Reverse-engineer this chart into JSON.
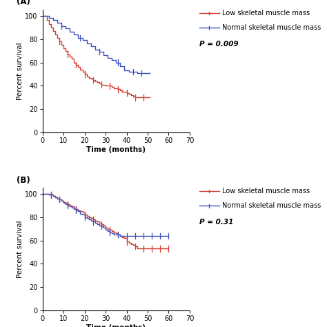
{
  "panel_A": {
    "label": "(A)",
    "p_value": "P = 0.009",
    "red": {
      "times": [
        0,
        2,
        3,
        4,
        5,
        6,
        7,
        8,
        9,
        10,
        11,
        12,
        13,
        14,
        15,
        16,
        17,
        18,
        19,
        20,
        21,
        22,
        23,
        24,
        25,
        26,
        27,
        28,
        29,
        30,
        31,
        32,
        33,
        34,
        35,
        36,
        37,
        38,
        39,
        40,
        41,
        42,
        43,
        44,
        45,
        46,
        47,
        48,
        49,
        50,
        51
      ],
      "surv": [
        100,
        96,
        93,
        90,
        87,
        84,
        81,
        78,
        75,
        72,
        70,
        67,
        65,
        63,
        60,
        58,
        56,
        54,
        52,
        50,
        48,
        47,
        46,
        45,
        44,
        43,
        42,
        41,
        41,
        40,
        40,
        40,
        39,
        38,
        38,
        37,
        36,
        35,
        35,
        34,
        33,
        32,
        31,
        30,
        30,
        30,
        30,
        30,
        30,
        30,
        30
      ],
      "censors": [
        8,
        12,
        16,
        20,
        24,
        28,
        32,
        36,
        40,
        44,
        48
      ]
    },
    "blue": {
      "times": [
        0,
        3,
        5,
        7,
        9,
        11,
        13,
        15,
        17,
        19,
        21,
        23,
        25,
        27,
        29,
        31,
        33,
        35,
        37,
        39,
        41,
        43,
        44,
        45,
        46,
        47,
        48,
        49,
        50,
        51
      ],
      "surv": [
        100,
        98,
        96,
        94,
        91,
        89,
        86,
        84,
        81,
        79,
        76,
        74,
        71,
        69,
        66,
        64,
        62,
        60,
        57,
        53,
        52,
        52,
        52,
        51,
        51,
        51,
        51,
        51,
        51,
        51
      ],
      "censors": [
        9,
        18,
        27,
        36,
        43,
        47
      ]
    },
    "xlim": [
      0,
      70
    ],
    "ylim": [
      0,
      105
    ],
    "xticks": [
      0,
      10,
      20,
      30,
      40,
      50,
      60,
      70
    ],
    "yticks": [
      0,
      20,
      40,
      60,
      80,
      100
    ]
  },
  "panel_B": {
    "label": "(B)",
    "p_value": "P = 0.31",
    "red": {
      "times": [
        0,
        1,
        3,
        5,
        6,
        7,
        8,
        9,
        10,
        11,
        12,
        13,
        14,
        15,
        16,
        17,
        18,
        19,
        20,
        21,
        22,
        23,
        24,
        25,
        26,
        27,
        28,
        29,
        30,
        31,
        32,
        33,
        34,
        35,
        36,
        37,
        38,
        39,
        40,
        41,
        42,
        43,
        44,
        45,
        46,
        47,
        48,
        49,
        50,
        51,
        52,
        53,
        54,
        55,
        56,
        57,
        58,
        59,
        60
      ],
      "surv": [
        100,
        100,
        99,
        98,
        97,
        96,
        95,
        94,
        93,
        92,
        91,
        90,
        89,
        88,
        87,
        86,
        85,
        84,
        82,
        81,
        80,
        79,
        78,
        77,
        76,
        75,
        74,
        73,
        71,
        70,
        69,
        68,
        67,
        66,
        65,
        64,
        63,
        62,
        59,
        58,
        57,
        56,
        55,
        53,
        53,
        53,
        53,
        53,
        53,
        53,
        53,
        53,
        53,
        53,
        53,
        53,
        53,
        53,
        53
      ],
      "censors": [
        4,
        8,
        12,
        16,
        20,
        24,
        28,
        32,
        36,
        40,
        44,
        48,
        52,
        56,
        60
      ]
    },
    "blue": {
      "times": [
        0,
        1,
        3,
        5,
        6,
        7,
        8,
        9,
        10,
        11,
        12,
        13,
        14,
        15,
        16,
        17,
        18,
        19,
        20,
        21,
        22,
        23,
        24,
        25,
        26,
        27,
        28,
        29,
        30,
        31,
        32,
        33,
        34,
        35,
        36,
        37,
        38,
        39,
        40,
        41,
        42,
        43,
        44,
        45,
        46,
        47,
        48,
        49,
        50,
        51,
        52,
        53,
        54,
        55,
        56,
        57,
        58,
        59,
        60
      ],
      "surv": [
        100,
        100,
        99,
        98,
        97,
        96,
        95,
        94,
        92,
        91,
        90,
        89,
        88,
        87,
        86,
        85,
        83,
        82,
        80,
        79,
        78,
        77,
        76,
        75,
        74,
        73,
        72,
        71,
        69,
        68,
        67,
        66,
        65,
        65,
        65,
        64,
        64,
        64,
        64,
        64,
        64,
        64,
        64,
        64,
        64,
        64,
        64,
        64,
        64,
        64,
        64,
        64,
        64,
        64,
        64,
        64,
        64,
        64,
        64
      ],
      "censors": [
        4,
        8,
        12,
        16,
        20,
        24,
        28,
        32,
        36,
        40,
        44,
        48,
        52,
        56,
        60
      ]
    },
    "xlim": [
      0,
      70
    ],
    "ylim": [
      0,
      105
    ],
    "xticks": [
      0,
      10,
      20,
      30,
      40,
      50,
      60,
      70
    ],
    "yticks": [
      0,
      20,
      40,
      60,
      80,
      100
    ]
  },
  "red_color": "#d63a2f",
  "blue_color": "#3a4fbf",
  "legend_label_low": "Low skeletal muscle mass",
  "legend_label_normal": "Normal skeletal muscle mass",
  "xlabel": "Time (months)",
  "ylabel": "Percent survival",
  "font_size": 7.5,
  "tick_font_size": 7,
  "p_value_x": 0.48,
  "p_value_y_A": 0.6,
  "p_value_y_B": 0.6
}
